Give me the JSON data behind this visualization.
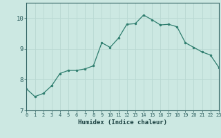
{
  "x": [
    0,
    1,
    2,
    3,
    4,
    5,
    6,
    7,
    8,
    9,
    10,
    11,
    12,
    13,
    14,
    15,
    16,
    17,
    18,
    19,
    20,
    21,
    22,
    23
  ],
  "y": [
    7.7,
    7.45,
    7.55,
    7.8,
    8.2,
    8.3,
    8.3,
    8.35,
    8.45,
    9.2,
    9.05,
    9.35,
    9.8,
    9.82,
    10.1,
    9.95,
    9.78,
    9.8,
    9.72,
    9.2,
    9.05,
    8.9,
    8.8,
    8.4
  ],
  "xlabel": "Humidex (Indice chaleur)",
  "xlim": [
    0,
    23
  ],
  "ylim": [
    7.0,
    10.5
  ],
  "yticks": [
    7,
    8,
    9,
    10
  ],
  "xticks": [
    0,
    1,
    2,
    3,
    4,
    5,
    6,
    7,
    8,
    9,
    10,
    11,
    12,
    13,
    14,
    15,
    16,
    17,
    18,
    19,
    20,
    21,
    22,
    23
  ],
  "line_color": "#2e7d6e",
  "marker_color": "#2e7d6e",
  "bg_color": "#cce8e2",
  "grid_color": "#b8d8d2",
  "tick_label_color": "#2e6060",
  "axis_color": "#2e6060",
  "label_color": "#1a4040"
}
